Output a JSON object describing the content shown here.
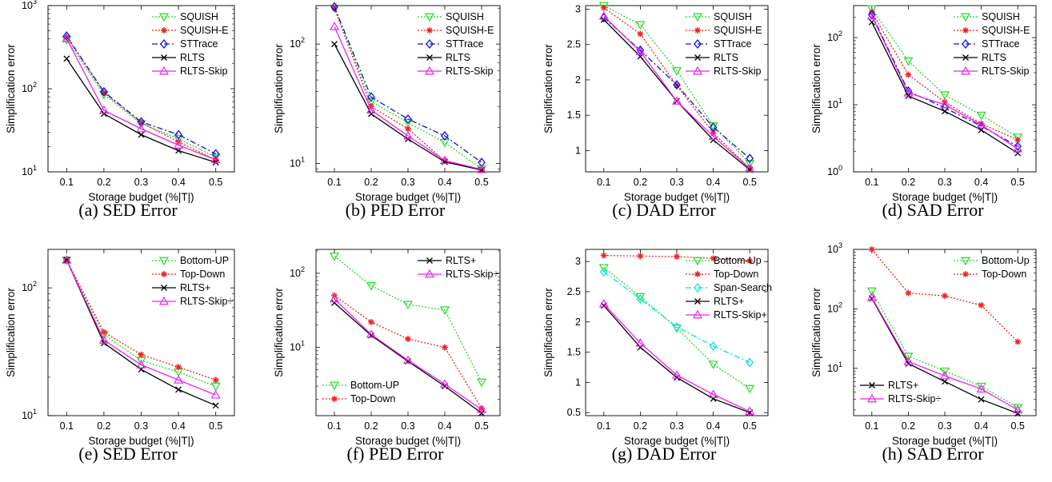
{
  "colors": {
    "SQUISH": "#22dd22",
    "SQUISH-E": "#ee2222",
    "STTrace": "#1111dd",
    "RLTS": "#000000",
    "RLTS-Skip": "#ee22ee",
    "Bottom-UP": "#22dd22",
    "Bottom-Up": "#22dd22",
    "Top-Down": "#ee2222",
    "Span-Search": "#11dddd",
    "RLTS+": "#000000",
    "RLTS-Skip+": "#ee22ee",
    "RLTS-Skip÷": "#ee22ee"
  },
  "chart_data": [
    {
      "type": "line",
      "caption": "(a) SED Error",
      "xlabel": "Storage budget (%|T|)",
      "ylabel": "Simplification error",
      "yscale": "log",
      "ylim": [
        10,
        1000
      ],
      "xlim": [
        0.05,
        0.55
      ],
      "x": [
        0.1,
        0.2,
        0.3,
        0.4,
        0.5
      ],
      "xticks": [
        "0.1",
        "0.2",
        "0.3",
        "0.4",
        "0.5"
      ],
      "yticks": [
        {
          "v": 10,
          "label": "10",
          "exp": "1"
        },
        {
          "v": 100,
          "label": "10",
          "exp": "2"
        },
        {
          "v": 1000,
          "label": "10",
          "exp": "3"
        }
      ],
      "legend_loc": "top-right",
      "series": [
        {
          "name": "SQUISH",
          "values": [
            390,
            85,
            38,
            25,
            15
          ],
          "marker": "tri-down",
          "dash": "2,2"
        },
        {
          "name": "SQUISH-E",
          "values": [
            420,
            90,
            39,
            23,
            14
          ],
          "marker": "star",
          "dash": "2,2"
        },
        {
          "name": "STTrace",
          "values": [
            430,
            92,
            40,
            28,
            16.5
          ],
          "marker": "diamond",
          "dash": "7,3,2,3"
        },
        {
          "name": "RLTS",
          "values": [
            230,
            50,
            28,
            18,
            13
          ],
          "marker": "x",
          "dash": ""
        },
        {
          "name": "RLTS-Skip",
          "values": [
            400,
            55,
            33,
            21,
            14
          ],
          "marker": "tri-up",
          "dash": ""
        }
      ]
    },
    {
      "type": "line",
      "caption": "(b) PED Error",
      "xlabel": "Storage budget (%|T|)",
      "ylabel": "Simplification error",
      "yscale": "log",
      "ylim": [
        8.5,
        210
      ],
      "xlim": [
        0.05,
        0.55
      ],
      "x": [
        0.1,
        0.2,
        0.3,
        0.4,
        0.5
      ],
      "xticks": [
        "0.1",
        "0.2",
        "0.3",
        "0.4",
        "0.5"
      ],
      "yticks": [
        {
          "v": 10,
          "label": "10",
          "exp": "1"
        },
        {
          "v": 100,
          "label": "10",
          "exp": "2"
        }
      ],
      "legend_loc": "top-right",
      "series": [
        {
          "name": "SQUISH",
          "values": [
            200,
            33,
            22,
            15,
            9
          ],
          "marker": "tri-down",
          "dash": "2,2"
        },
        {
          "name": "SQUISH-E",
          "values": [
            200,
            30,
            19.5,
            10.5,
            8.8
          ],
          "marker": "star",
          "dash": "2,2"
        },
        {
          "name": "STTrace",
          "values": [
            205,
            36,
            23.5,
            17,
            10.2
          ],
          "marker": "diamond",
          "dash": "7,3,2,3"
        },
        {
          "name": "RLTS",
          "values": [
            100,
            26,
            16,
            10.3,
            8.8
          ],
          "marker": "x",
          "dash": ""
        },
        {
          "name": "RLTS-Skip",
          "values": [
            140,
            28,
            17,
            10.6,
            8.9
          ],
          "marker": "tri-up",
          "dash": ""
        }
      ]
    },
    {
      "type": "line",
      "caption": "(c) DAD Error",
      "xlabel": "Storage budget (%|T|)",
      "ylabel": "Simplification error",
      "yscale": "linear",
      "ylim": [
        0.7,
        3.05
      ],
      "xlim": [
        0.05,
        0.55
      ],
      "x": [
        0.1,
        0.2,
        0.3,
        0.4,
        0.5
      ],
      "xticks": [
        "0.1",
        "0.2",
        "0.3",
        "0.4",
        "0.5"
      ],
      "yticks": [
        {
          "v": 1,
          "label": "1"
        },
        {
          "v": 1.5,
          "label": "1.5"
        },
        {
          "v": 2,
          "label": "2"
        },
        {
          "v": 2.5,
          "label": "2.5"
        },
        {
          "v": 3,
          "label": "3"
        }
      ],
      "legend_loc": "top-right",
      "series": [
        {
          "name": "SQUISH",
          "values": [
            3.05,
            2.78,
            2.13,
            1.35,
            0.82
          ],
          "marker": "tri-down",
          "dash": "2,2"
        },
        {
          "name": "SQUISH-E",
          "values": [
            3.02,
            2.65,
            1.92,
            1.25,
            0.75
          ],
          "marker": "star",
          "dash": "2,2"
        },
        {
          "name": "STTrace",
          "values": [
            2.88,
            2.42,
            1.93,
            1.33,
            0.89
          ],
          "marker": "diamond",
          "dash": "7,3,2,3"
        },
        {
          "name": "RLTS",
          "values": [
            2.85,
            2.33,
            1.7,
            1.15,
            0.73
          ],
          "marker": "x",
          "dash": ""
        },
        {
          "name": "RLTS-Skip",
          "values": [
            2.9,
            2.4,
            1.7,
            1.2,
            0.75
          ],
          "marker": "tri-up",
          "dash": ""
        }
      ]
    },
    {
      "type": "line",
      "caption": "(d) SAD Error",
      "xlabel": "Storage budget (%|T|)",
      "ylabel": "Simplification error",
      "yscale": "log",
      "ylim": [
        1,
        300
      ],
      "xlim": [
        0.05,
        0.55
      ],
      "x": [
        0.1,
        0.2,
        0.3,
        0.4,
        0.5
      ],
      "xticks": [
        "0.1",
        "0.2",
        "0.3",
        "0.4",
        "0.5"
      ],
      "yticks": [
        {
          "v": 1,
          "label": "10",
          "exp": "0"
        },
        {
          "v": 10,
          "label": "10",
          "exp": "1"
        },
        {
          "v": 100,
          "label": "10",
          "exp": "2"
        }
      ],
      "legend_loc": "top-right",
      "series": [
        {
          "name": "SQUISH",
          "values": [
            270,
            45,
            14,
            7,
            3.3
          ],
          "marker": "tri-down",
          "dash": "2,2"
        },
        {
          "name": "SQUISH-E",
          "values": [
            240,
            28,
            11,
            5.2,
            3
          ],
          "marker": "star",
          "dash": "2,2"
        },
        {
          "name": "STTrace",
          "values": [
            220,
            16,
            9,
            4.8,
            2.4
          ],
          "marker": "diamond",
          "dash": "7,3,2,3"
        },
        {
          "name": "RLTS",
          "values": [
            170,
            13.5,
            8,
            4.2,
            1.9
          ],
          "marker": "x",
          "dash": ""
        },
        {
          "name": "RLTS-Skip",
          "values": [
            210,
            15,
            10,
            5,
            2.2
          ],
          "marker": "tri-up",
          "dash": ""
        }
      ]
    },
    {
      "type": "line",
      "caption": "(e) SED Error",
      "xlabel": "Storage budget (%|T|)",
      "ylabel": "Simplification error",
      "yscale": "log",
      "ylim": [
        10,
        200
      ],
      "xlim": [
        0.05,
        0.55
      ],
      "x": [
        0.1,
        0.2,
        0.3,
        0.4,
        0.5
      ],
      "xticks": [
        "0.1",
        "0.2",
        "0.3",
        "0.4",
        "0.5"
      ],
      "yticks": [
        {
          "v": 10,
          "label": "10",
          "exp": "1"
        },
        {
          "v": 100,
          "label": "10",
          "exp": "2"
        }
      ],
      "legend_loc": "top-right",
      "series": [
        {
          "name": "Bottom-UP",
          "values": [
            165,
            43,
            27,
            22,
            17
          ],
          "marker": "tri-down",
          "dash": "2,2"
        },
        {
          "name": "Top-Down",
          "values": [
            165,
            45,
            30,
            24,
            19
          ],
          "marker": "star",
          "dash": "2,2"
        },
        {
          "name": "RLTS+",
          "values": [
            165,
            37,
            23,
            16,
            12
          ],
          "marker": "x",
          "dash": ""
        },
        {
          "name": "RLTS-Skip÷",
          "values": [
            165,
            39,
            25,
            19,
            14.5
          ],
          "marker": "tri-up",
          "dash": ""
        }
      ]
    },
    {
      "type": "line",
      "caption": "(f) PED Error",
      "xlabel": "Storage budget (%|T|)",
      "ylabel": "Simplification error",
      "yscale": "log",
      "ylim": [
        1.2,
        210
      ],
      "xlim": [
        0.05,
        0.55
      ],
      "x": [
        0.1,
        0.2,
        0.3,
        0.4,
        0.5
      ],
      "xticks": [
        "0.1",
        "0.2",
        "0.3",
        "0.4",
        "0.5"
      ],
      "yticks": [
        {
          "v": 10,
          "label": "10",
          "exp": "1"
        },
        {
          "v": 100,
          "label": "10",
          "exp": "2"
        }
      ],
      "legend_loc": [
        "top-right",
        "bottom-left"
      ],
      "series": [
        {
          "name": "Bottom-UP",
          "values": [
            170,
            68,
            38,
            32,
            3.4
          ],
          "marker": "tri-down",
          "dash": "2,2",
          "legend": 1
        },
        {
          "name": "Top-Down",
          "values": [
            50,
            22,
            13,
            10,
            1.5
          ],
          "marker": "star",
          "dash": "2,2",
          "legend": 1
        },
        {
          "name": "RLTS+",
          "values": [
            40,
            14.5,
            6.5,
            3,
            1.3
          ],
          "marker": "x",
          "dash": "",
          "legend": 0
        },
        {
          "name": "RLTS-Skip÷",
          "values": [
            45,
            15,
            6.7,
            3.2,
            1.45
          ],
          "marker": "tri-up",
          "dash": "",
          "legend": 0
        }
      ]
    },
    {
      "type": "line",
      "caption": "(g) DAD Error",
      "xlabel": "Storage budget (%|T|)",
      "ylabel": "Simplification error",
      "yscale": "linear",
      "ylim": [
        0.45,
        3.2
      ],
      "xlim": [
        0.05,
        0.55
      ],
      "x": [
        0.1,
        0.2,
        0.3,
        0.4,
        0.5
      ],
      "xticks": [
        "0.1",
        "0.2",
        "0.3",
        "0.4",
        "0.5"
      ],
      "yticks": [
        {
          "v": 0.5,
          "label": "0.5"
        },
        {
          "v": 1,
          "label": "1"
        },
        {
          "v": 1.5,
          "label": "1.5"
        },
        {
          "v": 2,
          "label": "2"
        },
        {
          "v": 2.5,
          "label": "2.5"
        },
        {
          "v": 3,
          "label": "3"
        }
      ],
      "legend_loc": "top-right",
      "series": [
        {
          "name": "Bottom-Up",
          "values": [
            2.9,
            2.42,
            1.9,
            1.3,
            0.9
          ],
          "marker": "tri-down",
          "dash": "2,2"
        },
        {
          "name": "Top-Down",
          "values": [
            3.1,
            3.09,
            3.08,
            3.05,
            3.01
          ],
          "marker": "star",
          "dash": "2,2"
        },
        {
          "name": "Span-Search",
          "values": [
            2.83,
            2.38,
            1.92,
            1.6,
            1.33
          ],
          "marker": "diamond",
          "dash": "7,3,2,3"
        },
        {
          "name": "RLTS+",
          "values": [
            2.27,
            1.58,
            1.08,
            0.73,
            0.5
          ],
          "marker": "x",
          "dash": ""
        },
        {
          "name": "RLTS-Skip+",
          "values": [
            2.3,
            1.65,
            1.12,
            0.8,
            0.52
          ],
          "marker": "tri-up",
          "dash": ""
        }
      ]
    },
    {
      "type": "line",
      "caption": "(h) SAD Error",
      "xlabel": "Storage budget (%|T|)",
      "ylabel": "Simplification error",
      "yscale": "log",
      "ylim": [
        1.6,
        1000
      ],
      "xlim": [
        0.05,
        0.55
      ],
      "x": [
        0.1,
        0.2,
        0.3,
        0.4,
        0.5
      ],
      "xticks": [
        "0.1",
        "0.2",
        "0.3",
        "0.4",
        "0.5"
      ],
      "yticks": [
        {
          "v": 10,
          "label": "10",
          "exp": "1"
        },
        {
          "v": 100,
          "label": "10",
          "exp": "2"
        },
        {
          "v": 1000,
          "label": "10",
          "exp": "3"
        }
      ],
      "legend_loc": [
        "top-right",
        "bottom-left"
      ],
      "series": [
        {
          "name": "Bottom-Up",
          "values": [
            200,
            16,
            9,
            5,
            2.2
          ],
          "marker": "tri-down",
          "dash": "2,2",
          "legend": 0
        },
        {
          "name": "Top-Down",
          "values": [
            1000,
            185,
            165,
            115,
            28
          ],
          "marker": "star",
          "dash": "2,2",
          "legend": 0
        },
        {
          "name": "RLTS+",
          "values": [
            150,
            12,
            6,
            3,
            1.75
          ],
          "marker": "x",
          "dash": "",
          "legend": 1
        },
        {
          "name": "RLTS-Skip÷",
          "values": [
            155,
            13,
            7.5,
            4.5,
            2
          ],
          "marker": "tri-up",
          "dash": "",
          "legend": 1
        }
      ]
    }
  ]
}
